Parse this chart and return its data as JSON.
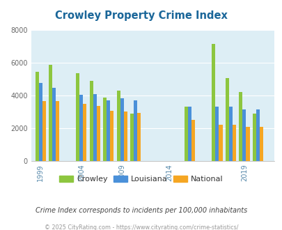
{
  "title": "Crowley Property Crime Index",
  "subtitle": "Crime Index corresponds to incidents per 100,000 inhabitants",
  "footer": "© 2025 CityRating.com - https://www.cityrating.com/crime-statistics/",
  "years": [
    1999,
    2001,
    2004,
    2006,
    2008,
    2009,
    2011,
    2015,
    2017,
    2018,
    2019,
    2020
  ],
  "x_positions": [
    0,
    1,
    3,
    4,
    5,
    6,
    7,
    11,
    13,
    14,
    15,
    16
  ],
  "crowley": [
    5450,
    5850,
    5380,
    4900,
    3870,
    4300,
    2900,
    3300,
    7150,
    5050,
    4200,
    2900
  ],
  "louisiana": [
    4750,
    4450,
    4060,
    4070,
    3720,
    3840,
    3680,
    3310,
    3310,
    3310,
    3160,
    3160
  ],
  "national": [
    3650,
    3660,
    3500,
    3350,
    3050,
    3010,
    2950,
    2500,
    2200,
    2200,
    2100,
    2100
  ],
  "crowley_color": "#8dc63f",
  "louisiana_color": "#4a90d9",
  "national_color": "#f5a623",
  "bg_color": "#ddeef5",
  "ylim": [
    0,
    8000
  ],
  "yticks": [
    0,
    2000,
    4000,
    6000,
    8000
  ],
  "x_tick_labels": [
    "1999",
    "2004",
    "2009",
    "2014",
    "2019"
  ],
  "x_tick_positions": [
    0,
    3,
    6,
    9.5,
    15
  ],
  "title_color": "#1a6699",
  "subtitle_color": "#444444",
  "footer_color": "#999999",
  "grid_color": "#ffffff",
  "axis_label_color": "#5588aa"
}
